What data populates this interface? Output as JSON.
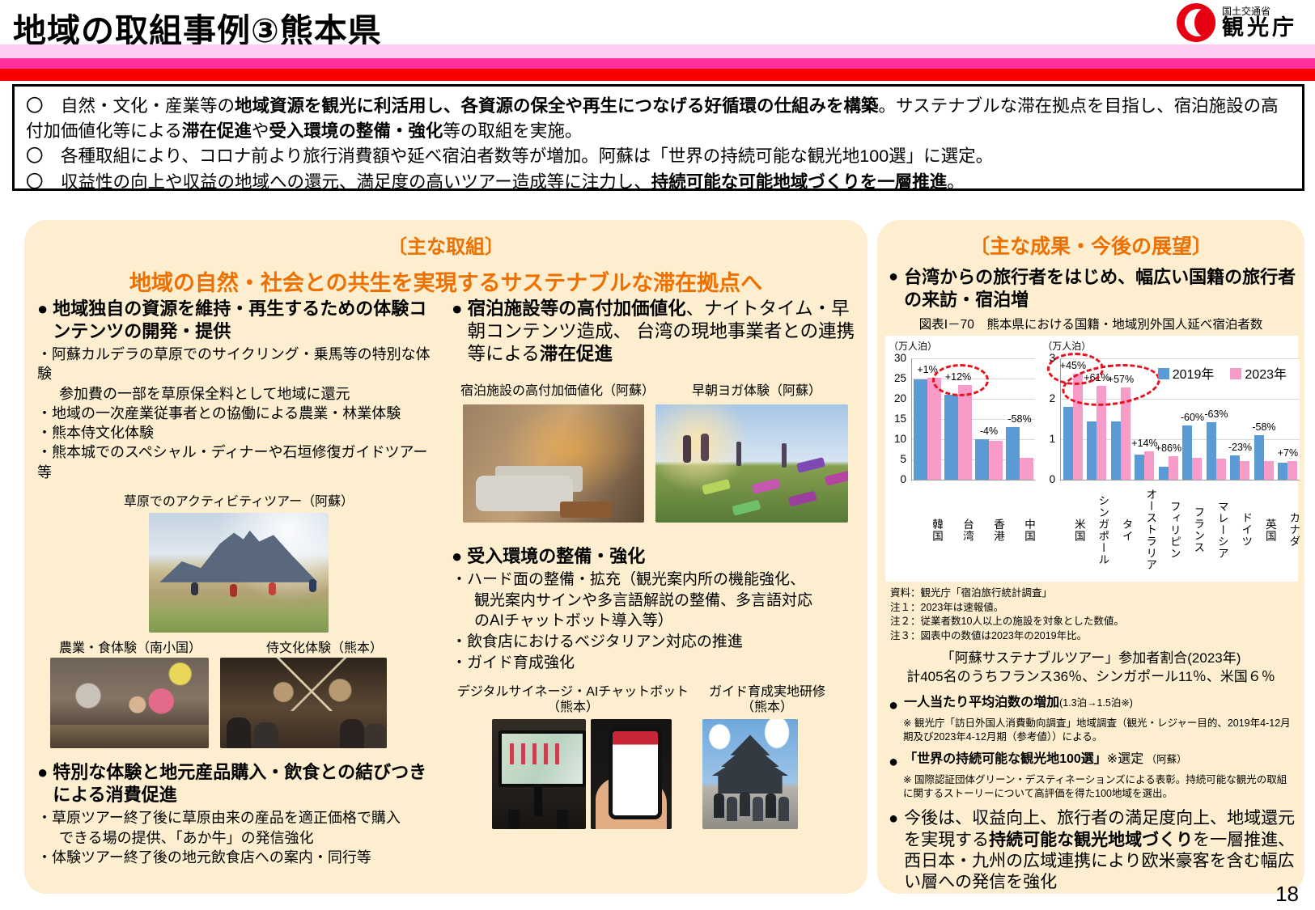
{
  "header": {
    "title": "地域の取組事例③熊本県",
    "ministry": "国土交通省",
    "agency": "観光庁"
  },
  "glyphs": {
    "bullet": "●"
  },
  "summary": {
    "bullets": [
      {
        "segments": [
          {
            "t": "〇　自然・文化・産業等の",
            "b": false
          },
          {
            "t": "地域資源を観光に利活用し、各資源の保全や再生につなげる好循環の仕組みを構築",
            "b": true
          },
          {
            "t": "。サステナブルな滞在拠点を目指し、宿泊施設の高付加価値化等による",
            "b": false
          },
          {
            "t": "滞在促進",
            "b": true
          },
          {
            "t": "や",
            "b": false
          },
          {
            "t": "受入環境の整備・強化",
            "b": true
          },
          {
            "t": "等の取組を実施。",
            "b": false
          }
        ]
      },
      {
        "segments": [
          {
            "t": "〇　各種取組により、コロナ前より旅行消費額や延べ宿泊者数等が増加。阿蘇は「世界の持続可能な観光地100選」に選定。",
            "b": false
          }
        ]
      },
      {
        "segments": [
          {
            "t": "〇　収益性の向上や収益の地域への還元、満足度の高いツアー造成等に注力し、",
            "b": false
          },
          {
            "t": "持続可能な可能地域づくりを一層推進",
            "b": true
          },
          {
            "t": "。",
            "b": false
          }
        ]
      }
    ]
  },
  "main_panel": {
    "heading": "〔主な取組〕",
    "subheading": "地域の自然・社会との共生を実現するサステナブルな滞在拠点へ",
    "left": {
      "block1_title": "地域独自の資源を維持・再生するための体験コンテンツの開発・提供",
      "block1_items": [
        "・阿蘇カルデラの草原でのサイクリング・乗馬等の特別な体験",
        "　参加費の一部を草原保全料として地域に還元",
        "・地域の一次産業従事者との協働による農業・林業体験",
        "・熊本侍文化体験",
        "・熊本城でのスペシャル・ディナーや石垣修復ガイドツアー等"
      ],
      "caption_cycling": "草原でのアクティビティツアー（阿蘇）",
      "caption_farm": "農業・食体験（南小国）",
      "caption_samurai": "侍文化体験（熊本）",
      "block2_title": "特別な体験と地元産品購入・飲食との結びつきによる消費促進",
      "block2_items": [
        "・草原ツアー終了後に草原由来の産品を適正価格で購入",
        "　できる場の提供、「あか牛」の発信強化",
        "・体験ツアー終了後の地元飲食店への案内・同行等"
      ]
    },
    "middle": {
      "block1_segments": [
        {
          "t": "宿泊施設等の高付加価値化",
          "b": true
        },
        {
          "t": "、ナイトタイム・早朝コンテンツ造成、 台湾の現地事業者との連携等による",
          "b": false
        },
        {
          "t": "滞在促進",
          "b": true
        }
      ],
      "caption_hotel": "宿泊施設の高付加価値化（阿蘇）",
      "caption_yoga": "早朝ヨガ体験（阿蘇）",
      "block2_title": "受入環境の整備・強化",
      "block2_items": [
        "・ハード面の整備・拡充（観光案内所の機能強化、",
        "　観光案内サインや多言語解説の整備、多言語対応",
        "　のAIチャットボット導入等）",
        "・飲食店におけるベジタリアン対応の推進",
        "・ガイド育成強化"
      ],
      "caption_signage_1": "デジタルサイネージ・AIチャットボット",
      "caption_signage_2": "（熊本）",
      "caption_guide_1": "ガイド育成実地研修",
      "caption_guide_2": "（熊本）"
    }
  },
  "results_panel": {
    "heading": "〔主な成果・今後の展望〕",
    "bullet1": "台湾からの旅行者をはじめ、幅広い国籍の旅行者の来訪・宿泊増",
    "notes": [
      "資料：観光庁「宿泊旅行統計調査」",
      "注１：2023年は速報値。",
      "注２：従業者数10人以上の施設を対象とした数値。",
      "注３：図表中の数値は2023年の2019年比。"
    ],
    "tour_share_line1": "「阿蘇サステナブルツアー」参加者割合(2023年)",
    "tour_share_line2": "計405名のうちフランス36％、シンガポール11％、米国６％",
    "bullet2_segments": [
      {
        "t": "一人当たり平均泊数の増加",
        "b": true
      },
      {
        "t": "(1.3泊→1.5泊※)",
        "b": false,
        "small": true
      }
    ],
    "bullet2_note": "※ 観光庁「訪日外国人消費動向調査」地域調査（観光・レジャー目的、2019年4-12月期及び2023年4-12月期（参考値））による。",
    "bullet3_segments": [
      {
        "t": "「世界の持続可能な観光地100選」",
        "b": true
      },
      {
        "t": "※選定",
        "b": false
      },
      {
        "t": " （阿蘇）",
        "b": false,
        "small": true
      }
    ],
    "bullet3_note": "※ 国際認証団体グリーン・デスティネーションズによる表彰。持続可能な観光の取組に関するストーリーについて高評価を得た100地域を選出。",
    "bullet4_segments": [
      {
        "t": "今後は、収益向上、旅行者の満足度向上、地域還元を実現する",
        "b": false
      },
      {
        "t": "持続可能な観光地域づくり",
        "b": true
      },
      {
        "t": "を一層推進、西日本・九州の広域連携により欧米豪客を含む幅広い層への発信を強化",
        "b": false
      }
    ]
  },
  "chart_data": {
    "type": "bar",
    "title": "図表Ⅰ－70　熊本県における国籍・地域別外国人延べ宿泊者数",
    "unit": "（万人泊）",
    "legend": [
      "2019年",
      "2023年"
    ],
    "colors": {
      "y2019": "#5B9BD5",
      "y2023": "#F79BC8"
    },
    "grid": true,
    "charts": [
      {
        "ylim": [
          0,
          30
        ],
        "yticks": [
          0,
          5,
          10,
          15,
          20,
          25,
          30
        ],
        "categories": [
          "韓国",
          "台湾",
          "香港",
          "中国"
        ],
        "series": [
          {
            "name": "2019年",
            "values": [
              24.8,
              21.0,
              10.0,
              13.0
            ]
          },
          {
            "name": "2023年",
            "values": [
              25.2,
              23.4,
              9.6,
              5.5
            ]
          }
        ],
        "labels": [
          "+1%",
          "+12%",
          "-4%",
          "-58%"
        ],
        "emphasis": [
          [
            1
          ]
        ]
      },
      {
        "ylim": [
          0,
          3
        ],
        "yticks": [
          0,
          1,
          2,
          3
        ],
        "categories": [
          "米国",
          "シンガポール",
          "タイ",
          "オーストラリア",
          "フィリピン",
          "フランス",
          "マレーシア",
          "ドイツ",
          "英国",
          "カナダ"
        ],
        "series": [
          {
            "name": "2019年",
            "values": [
              1.8,
              1.45,
              1.45,
              0.62,
              0.32,
              1.35,
              1.42,
              0.6,
              1.1,
              0.43
            ]
          },
          {
            "name": "2023年",
            "values": [
              2.62,
              2.33,
              2.28,
              0.71,
              0.58,
              0.55,
              0.53,
              0.46,
              0.46,
              0.46
            ]
          }
        ],
        "labels": [
          "+45%",
          "+61%",
          "+57%",
          "+14%",
          "+86%",
          "-60%",
          "-63%",
          "-23%",
          "-58%",
          "+7%"
        ],
        "emphasis": [
          [
            0
          ],
          [
            1,
            2
          ]
        ]
      }
    ]
  },
  "page_number": "18"
}
